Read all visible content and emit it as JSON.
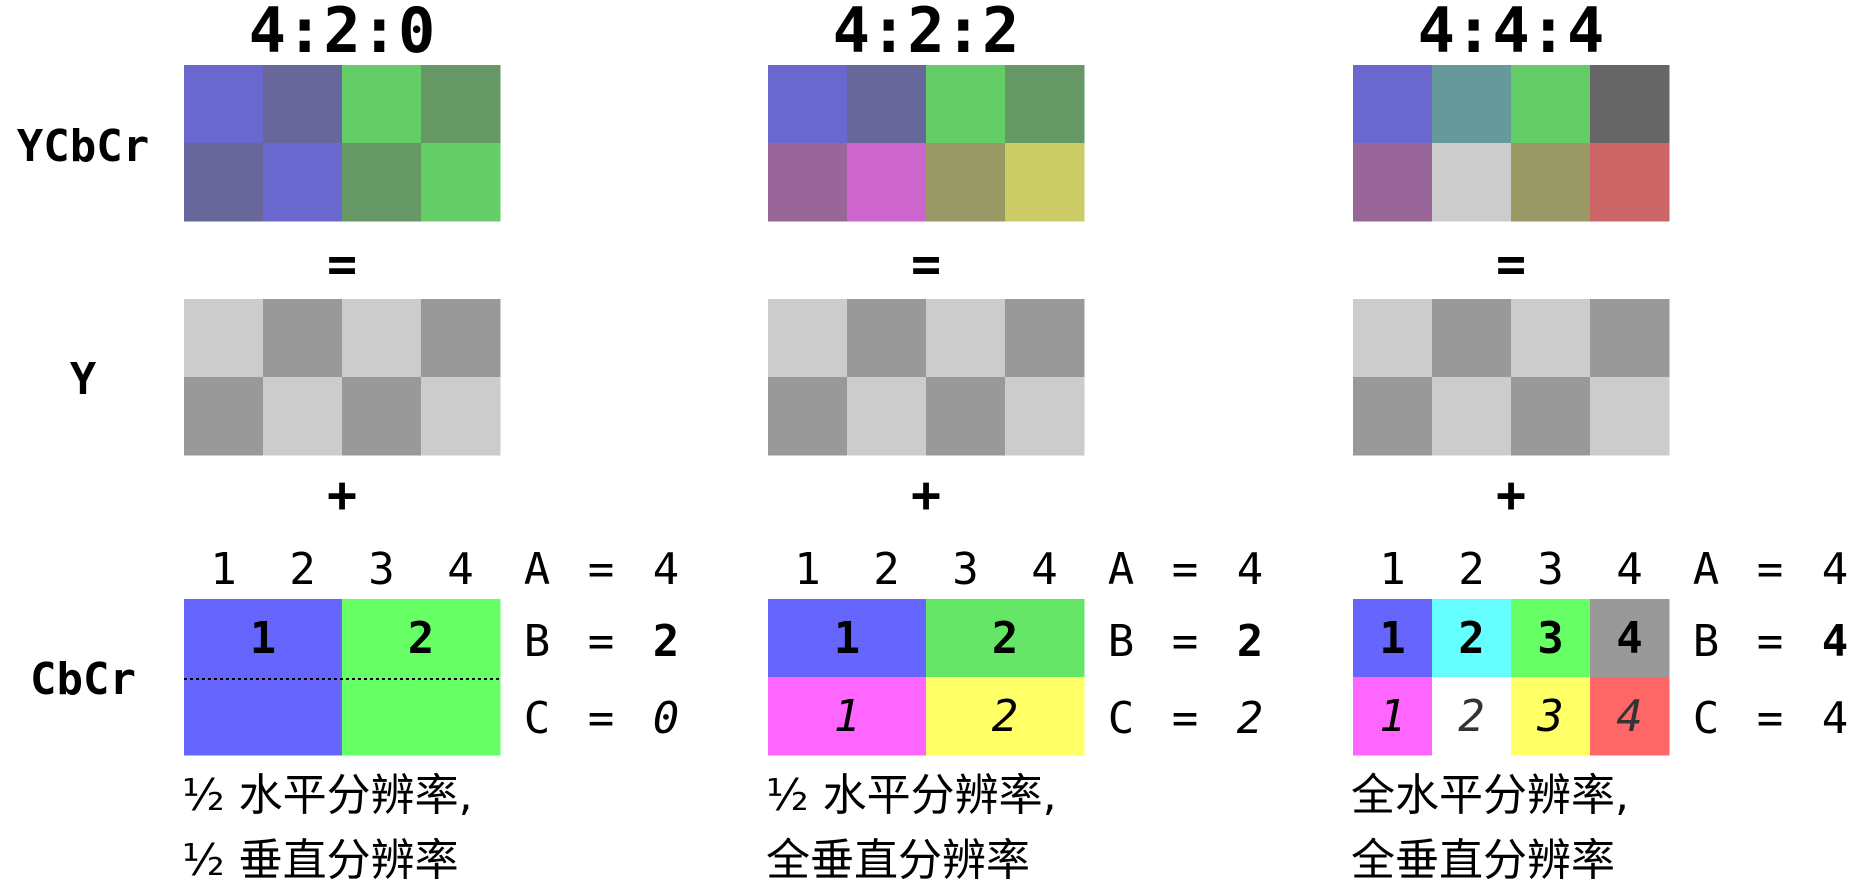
{
  "row_labels": {
    "ycbcr": "YCbCr",
    "y": "Y",
    "cbcr": "CbCr"
  },
  "operators": {
    "equals": "=",
    "plus": "+"
  },
  "column_numbers": [
    "1",
    "2",
    "3",
    "4"
  ],
  "abc_letters": [
    "A",
    "B",
    "C"
  ],
  "eq_sign": "=",
  "schemes": [
    {
      "title": "4:2:0",
      "ycbcr_colors": [
        [
          "#6a67cf",
          "#67679b",
          "#65cd67",
          "#669866"
        ],
        [
          "#67679b",
          "#6a67cf",
          "#669866",
          "#65cd67"
        ]
      ],
      "y_colors": [
        [
          "#cccccc",
          "#999999",
          "#cccccc",
          "#999999"
        ],
        [
          "#999999",
          "#cccccc",
          "#999999",
          "#cccccc"
        ]
      ],
      "a_value": "4",
      "b_value": "2",
      "c_value": "0",
      "chroma_top": [
        {
          "label": "1",
          "span": 2,
          "color": "#6666ff",
          "text_color": "#000000"
        },
        {
          "label": "2",
          "span": 2,
          "color": "#66ff66",
          "text_color": "#000000"
        }
      ],
      "chroma_bottom": [
        {
          "label": "",
          "span": 2,
          "color": "#6666ff",
          "text_color": "#000000"
        },
        {
          "label": "",
          "span": 2,
          "color": "#66ff66",
          "text_color": "#000000"
        }
      ],
      "dotted_divider": true,
      "caption": [
        "½ 水平分辨率,",
        "½ 垂直分辨率"
      ]
    },
    {
      "title": "4:2:2",
      "ycbcr_colors": [
        [
          "#6a67cf",
          "#67679b",
          "#65cd67",
          "#669866"
        ],
        [
          "#996699",
          "#cc66cc",
          "#999966",
          "#cccc66"
        ]
      ],
      "y_colors": [
        [
          "#cccccc",
          "#999999",
          "#cccccc",
          "#999999"
        ],
        [
          "#999999",
          "#cccccc",
          "#999999",
          "#cccccc"
        ]
      ],
      "a_value": "4",
      "b_value": "2",
      "c_value": "2",
      "chroma_top": [
        {
          "label": "1",
          "span": 2,
          "color": "#6666ff",
          "text_color": "#000000"
        },
        {
          "label": "2",
          "span": 2,
          "color": "#66e666",
          "text_color": "#000000"
        }
      ],
      "chroma_bottom": [
        {
          "label": "1",
          "span": 2,
          "color": "#ff66ff",
          "text_color": "#000000"
        },
        {
          "label": "2",
          "span": 2,
          "color": "#ffff66",
          "text_color": "#000000"
        }
      ],
      "dotted_divider": false,
      "caption": [
        "½ 水平分辨率,",
        "全垂直分辨率"
      ]
    },
    {
      "title": "4:4:4",
      "ycbcr_colors": [
        [
          "#6a67cf",
          "#669999",
          "#65cd67",
          "#666666"
        ],
        [
          "#996699",
          "#cccccc",
          "#999966",
          "#cc6666"
        ]
      ],
      "y_colors": [
        [
          "#cccccc",
          "#999999",
          "#cccccc",
          "#999999"
        ],
        [
          "#999999",
          "#cccccc",
          "#999999",
          "#cccccc"
        ]
      ],
      "a_value": "4",
      "b_value": "4",
      "c_value": "4",
      "chroma_top": [
        {
          "label": "1",
          "span": 1,
          "color": "#6666ff",
          "text_color": "#000000"
        },
        {
          "label": "2",
          "span": 1,
          "color": "#66ffff",
          "text_color": "#000000"
        },
        {
          "label": "3",
          "span": 1,
          "color": "#66ff66",
          "text_color": "#000000"
        },
        {
          "label": "4",
          "span": 1,
          "color": "#999999",
          "text_color": "#000000"
        }
      ],
      "chroma_bottom": [
        {
          "label": "1",
          "span": 1,
          "color": "#ff66ff",
          "text_color": "#000000"
        },
        {
          "label": "2",
          "span": 1,
          "color": "#ffffff",
          "text_color": "#333333"
        },
        {
          "label": "3",
          "span": 1,
          "color": "#ffff66",
          "text_color": "#000000"
        },
        {
          "label": "4",
          "span": 1,
          "color": "#ff6666",
          "text_color": "#333333"
        }
      ],
      "dotted_divider": false,
      "caption": [
        "全水平分辨率,",
        "全垂直分辨率"
      ]
    }
  ]
}
